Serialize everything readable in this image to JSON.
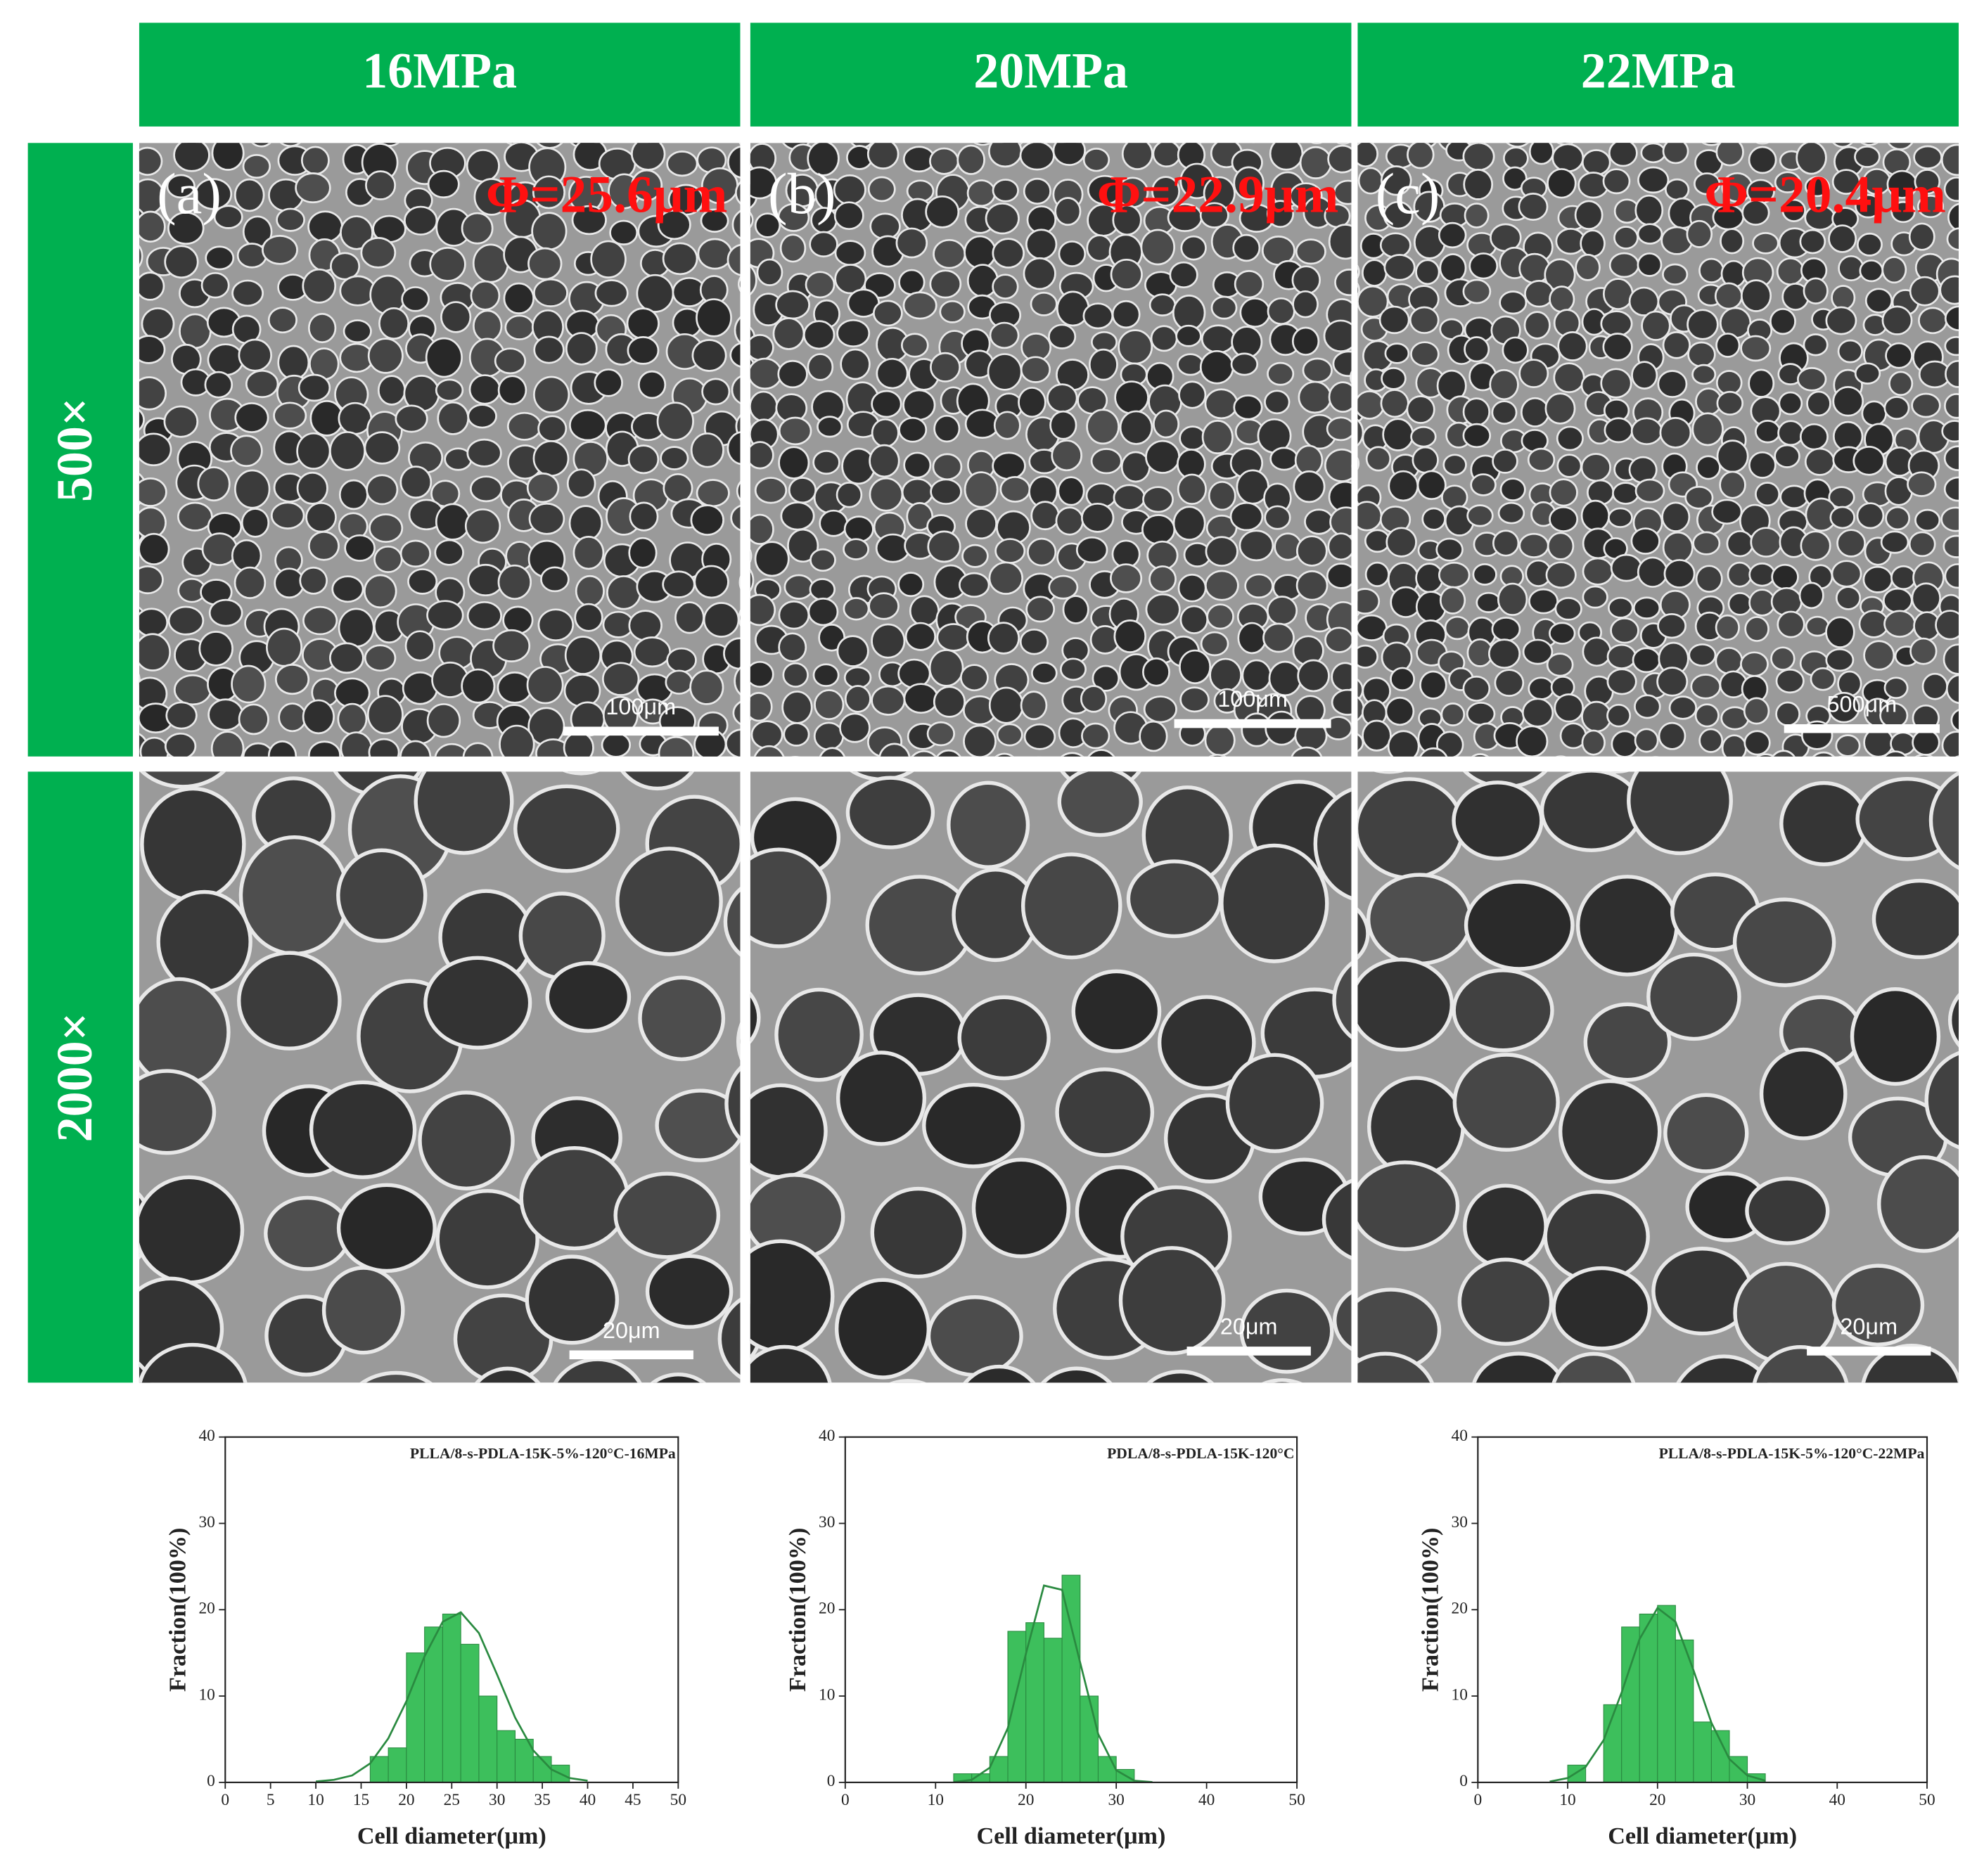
{
  "columns": [
    "16MPa",
    "20MPa",
    "22MPa"
  ],
  "rows": [
    "500×",
    "2000×"
  ],
  "panels": [
    {
      "label": "(a)",
      "diameter": "Φ=25.6μm"
    },
    {
      "label": "(b)",
      "diameter": "Φ=22.9μm"
    },
    {
      "label": "(c)",
      "diameter": "Φ=20.4μm"
    }
  ],
  "scale_bars": [
    [
      "100μm",
      "100μm",
      "500μm"
    ],
    [
      "20μm",
      "20μm",
      "20μm"
    ]
  ],
  "chart_data": [
    {
      "type": "histogram",
      "title": "PLLA/8-s-PDLA-15K-5%-120°C-16MPa",
      "x_label": "Cell diameter(μm)",
      "y_label": "Fraction(100%)",
      "bins": [
        16,
        18,
        20,
        22,
        24,
        26,
        28,
        30,
        32,
        34,
        36,
        38
      ],
      "values": [
        3,
        4,
        15,
        18,
        19.5,
        16,
        10,
        6,
        5,
        3,
        2
      ],
      "color": "#3dbf5c",
      "fit": {
        "color": "#2a8a40",
        "x": [
          10,
          12,
          14,
          16,
          18,
          20,
          22,
          24,
          26,
          28,
          30,
          32,
          34,
          36,
          38,
          40
        ],
        "values": [
          0.1,
          0.3,
          0.8,
          2.2,
          5.1,
          9.4,
          14.6,
          18.6,
          19.7,
          17.3,
          12.5,
          7.5,
          3.7,
          1.5,
          0.5,
          0.2
        ]
      },
      "xlim": [
        0,
        50
      ],
      "xticks": [
        0,
        5,
        10,
        15,
        20,
        25,
        30,
        35,
        40,
        45,
        50
      ],
      "ylim": [
        0,
        40
      ],
      "yticks": [
        0,
        10,
        20,
        30,
        40
      ]
    },
    {
      "type": "histogram",
      "title": "PDLA/8-s-PDLA-15K-120°C",
      "x_label": "Cell diameter(μm)",
      "y_label": "Fraction(100%)",
      "bins": [
        12,
        14,
        16,
        18,
        20,
        22,
        24,
        26,
        28,
        30,
        32
      ],
      "values": [
        1,
        1,
        3,
        17.5,
        18.5,
        16.7,
        24,
        10,
        3,
        1.5
      ],
      "color": "#3dbf5c",
      "fit": {
        "color": "#2a8a40",
        "x": [
          12,
          14,
          16,
          18,
          20,
          22,
          24,
          26,
          28,
          30,
          32,
          34
        ],
        "values": [
          0.03,
          0.3,
          1.7,
          6.3,
          14.9,
          22.8,
          22.3,
          13.9,
          5.6,
          1.4,
          0.2,
          0.03
        ]
      },
      "xlim": [
        0,
        50
      ],
      "xticks": [
        0,
        10,
        20,
        30,
        40,
        50
      ],
      "ylim": [
        0,
        40
      ],
      "yticks": [
        0,
        10,
        20,
        30,
        40
      ]
    },
    {
      "type": "histogram",
      "title": "PLLA/8-s-PDLA-15K-5%-120°C-22MPa",
      "x_label": "Cell diameter(μm)",
      "y_label": "Fraction(100%)",
      "bins": [
        10,
        12,
        14,
        16,
        18,
        20,
        22,
        24,
        26,
        28,
        30,
        32
      ],
      "values": [
        2,
        0,
        9,
        18,
        19.5,
        20.5,
        16.5,
        7,
        6,
        3,
        1
      ],
      "color": "#3dbf5c",
      "fit": {
        "color": "#2a8a40",
        "x": [
          8,
          10,
          12,
          14,
          16,
          18,
          20,
          22,
          24,
          26,
          28,
          30,
          32
        ],
        "values": [
          0.1,
          0.5,
          1.8,
          4.9,
          10.4,
          16.6,
          20.2,
          18.6,
          13,
          6.9,
          2.7,
          0.8,
          0.2
        ]
      },
      "xlim": [
        0,
        50
      ],
      "xticks": [
        0,
        10,
        20,
        30,
        40,
        50
      ],
      "ylim": [
        0,
        40
      ],
      "yticks": [
        0,
        10,
        20,
        30,
        40
      ]
    }
  ]
}
